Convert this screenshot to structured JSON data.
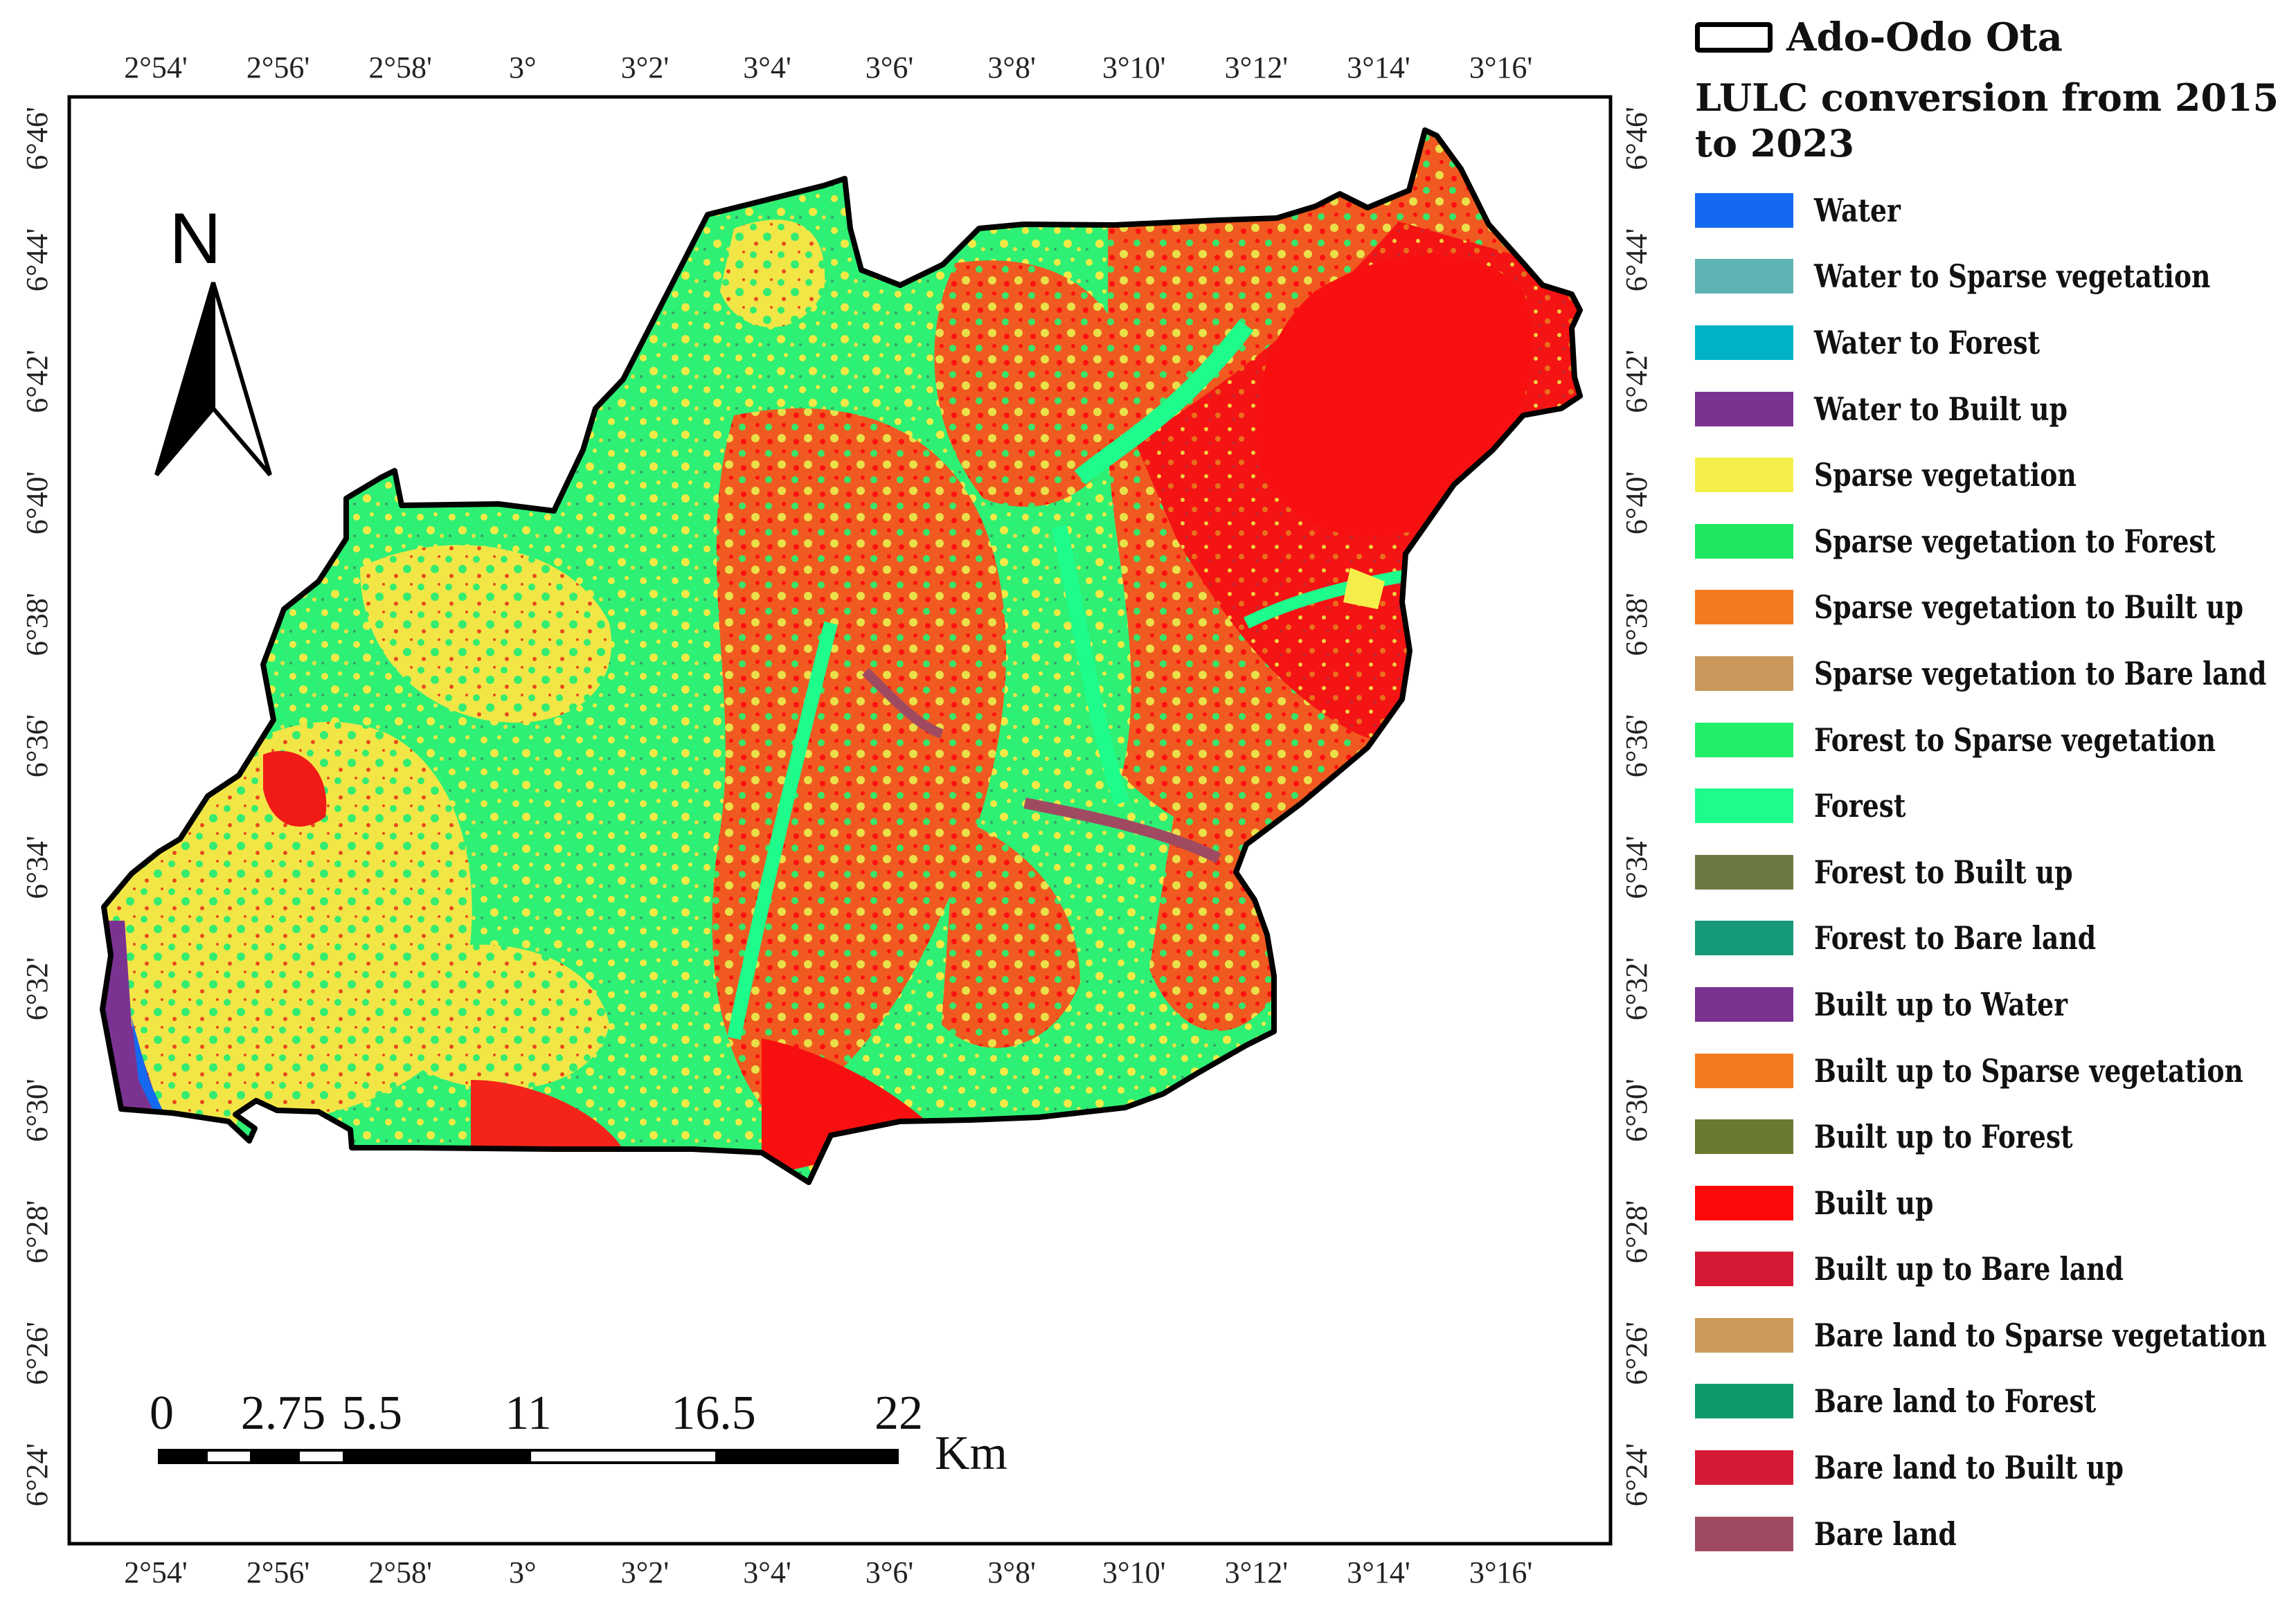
{
  "top_ticks": [
    "2°54'",
    "2°56'",
    "2°58'",
    "3°",
    "3°2'",
    "3°4'",
    "3°6'",
    "3°8'",
    "3°10'",
    "3°12'",
    "3°14'",
    "3°16'"
  ],
  "left_ticks": [
    "6°46'",
    "6°44'",
    "6°42'",
    "6°40'",
    "6°38'",
    "6°36'",
    "6°34'",
    "6°32'",
    "6°30'",
    "6°28'",
    "6°26'",
    "6°24'"
  ],
  "north_arrow": {
    "label": "N"
  },
  "scale_bar": {
    "labels": [
      "0",
      "2.75",
      "5.5",
      "11",
      "16.5",
      "22"
    ],
    "unit": "Km"
  },
  "legend": {
    "boundary_label": "Ado-Odo Ota",
    "title": "LULC conversion from 2015 to 2023",
    "items": [
      {
        "label": "Water",
        "color": "#1469f0"
      },
      {
        "label": "Water to Sparse vegetation",
        "color": "#5fb3b3"
      },
      {
        "label": "Water to Forest",
        "color": "#00b3c6"
      },
      {
        "label": "Water to Built up",
        "color": "#7a3391"
      },
      {
        "label": "Sparse vegetation",
        "color": "#f5ee4a"
      },
      {
        "label": "Sparse vegetation to Forest",
        "color": "#1ee860"
      },
      {
        "label": "Sparse vegetation to Built up",
        "color": "#f47a20"
      },
      {
        "label": "Sparse vegetation to Bare land",
        "color": "#c9985a"
      },
      {
        "label": "Forest to Sparse vegetation",
        "color": "#22ee6a"
      },
      {
        "label": "Forest",
        "color": "#1efc8c"
      },
      {
        "label": "Forest to Built up",
        "color": "#6b7a40"
      },
      {
        "label": "Forest to Bare land",
        "color": "#16987a"
      },
      {
        "label": "Built up to Water",
        "color": "#7a3391"
      },
      {
        "label": "Built up to Sparse vegetation",
        "color": "#f47a20"
      },
      {
        "label": "Built up to Forest",
        "color": "#697a32"
      },
      {
        "label": "Built up",
        "color": "#fc0a0a"
      },
      {
        "label": "Built up to Bare land",
        "color": "#d61a36"
      },
      {
        "label": "Bare land to Sparse vegetation",
        "color": "#cc9a5a"
      },
      {
        "label": "Bare land to Forest",
        "color": "#109a6a"
      },
      {
        "label": "Bare land to Built up",
        "color": "#d61a36"
      },
      {
        "label": "Bare land",
        "color": "#a04a62"
      }
    ]
  }
}
